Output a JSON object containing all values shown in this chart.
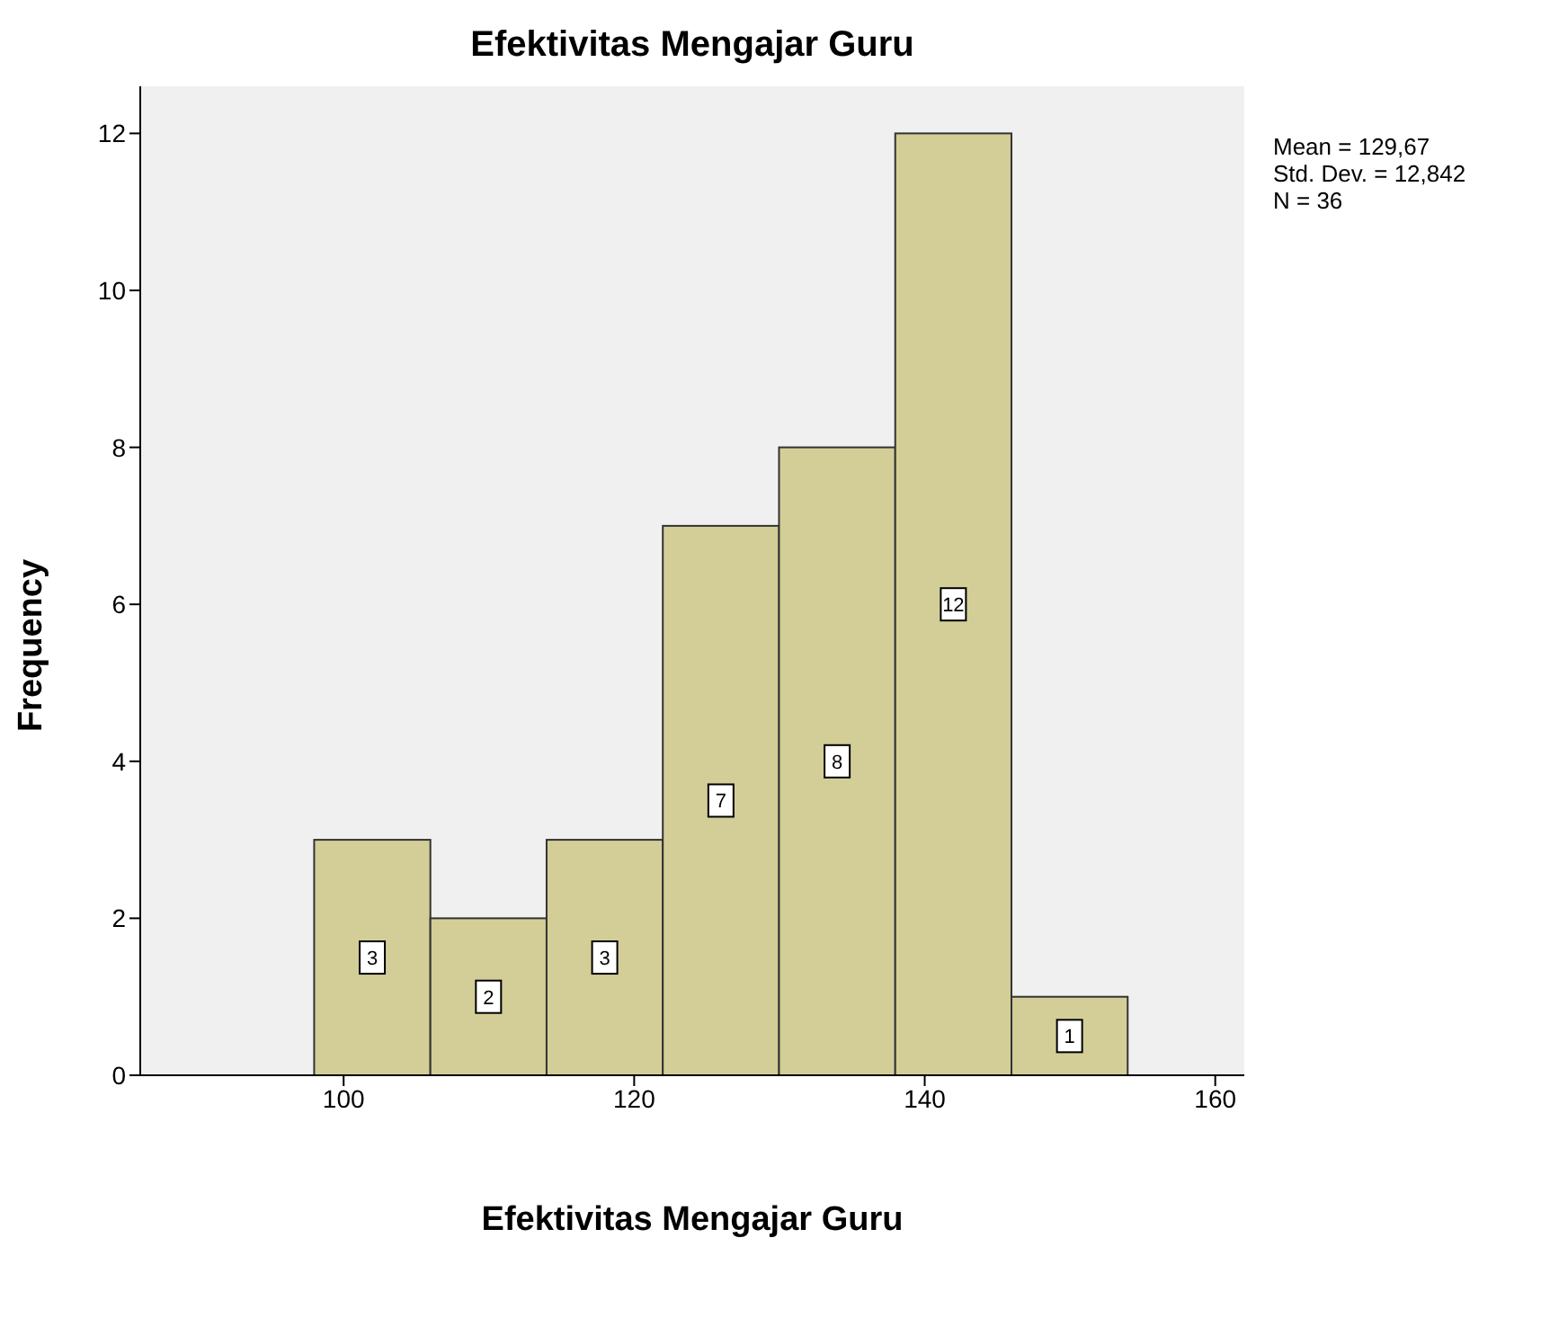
{
  "chart_data": {
    "type": "histogram",
    "title": "Efektivitas Mengajar Guru",
    "xlabel": "Efektivitas Mengajar Guru",
    "ylabel": "Frequency",
    "bins": [
      98,
      106,
      114,
      122,
      130,
      138,
      146,
      154
    ],
    "values": [
      3,
      2,
      3,
      7,
      8,
      12,
      1
    ],
    "color": "#d3ce97",
    "xlim": [
      86,
      162
    ],
    "xticks": [
      100,
      120,
      140,
      160
    ],
    "ylim": [
      0,
      12.6
    ],
    "yticks": [
      0,
      2,
      4,
      6,
      8,
      10,
      12
    ],
    "grid": false,
    "data_labels": true,
    "annotations": [
      "Mean = 129,67",
      "Std. Dev. = 12,842",
      "N = 36"
    ]
  }
}
